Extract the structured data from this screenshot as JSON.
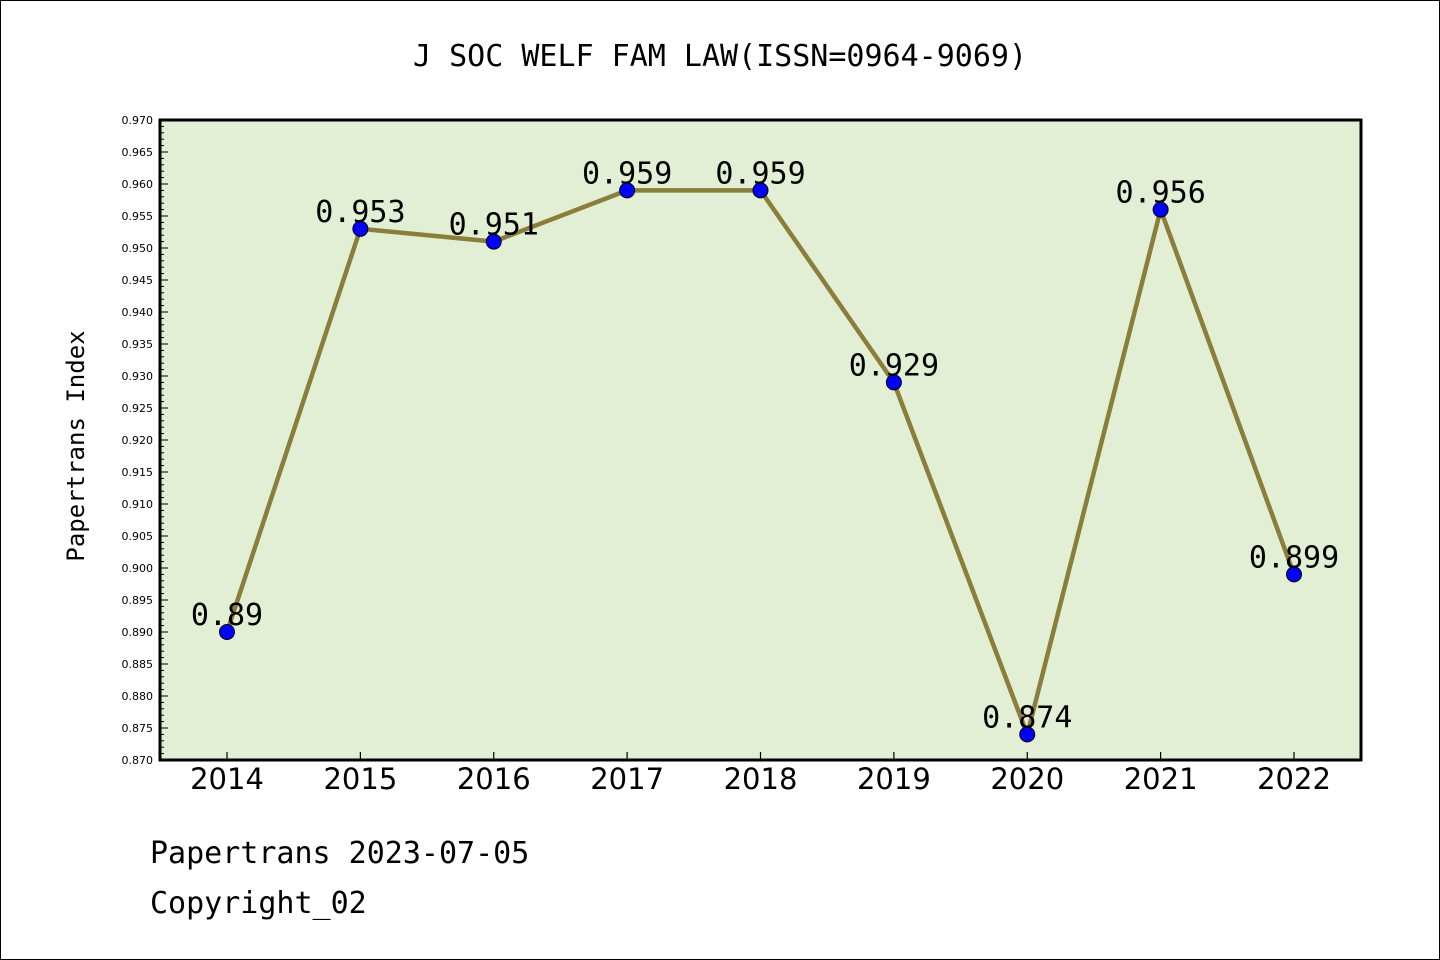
{
  "chart_data": {
    "type": "line",
    "title": "J SOC WELF FAM LAW(ISSN=0964-9069)",
    "xlabel": "",
    "ylabel": "Papertrans Index",
    "categories": [
      "2014",
      "2015",
      "2016",
      "2017",
      "2018",
      "2019",
      "2020",
      "2021",
      "2022"
    ],
    "series": [
      {
        "values": [
          0.89,
          0.953,
          0.951,
          0.959,
          0.959,
          0.929,
          0.874,
          0.956,
          0.899
        ],
        "labels": [
          "0.89",
          "0.953",
          "0.951",
          "0.959",
          "0.959",
          "0.929",
          "0.874",
          "0.956",
          "0.899"
        ]
      }
    ],
    "ylim": [
      0.87,
      0.97
    ],
    "yticks": [
      "0.870",
      "0.875",
      "0.880",
      "0.885",
      "0.890",
      "0.895",
      "0.900",
      "0.905",
      "0.910",
      "0.915",
      "0.920",
      "0.925",
      "0.930",
      "0.935",
      "0.940",
      "0.945",
      "0.950",
      "0.955",
      "0.960",
      "0.965",
      "0.970"
    ],
    "grid": false,
    "colors": {
      "plot_background": "#e2efd5",
      "line": "#8b7d3a",
      "marker": "#0000ff"
    }
  },
  "footer": {
    "date_line": "Papertrans 2023-07-05",
    "copyright_line": "Copyright_02"
  }
}
